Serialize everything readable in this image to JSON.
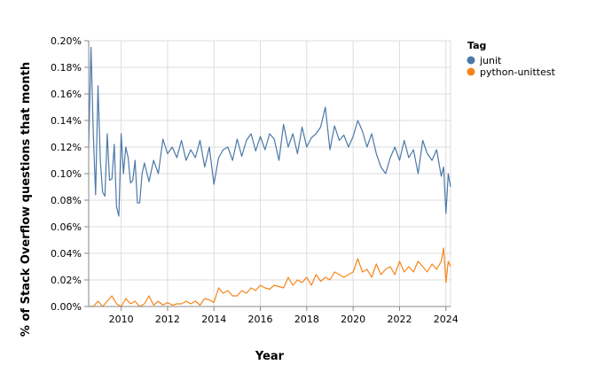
{
  "chart_data": {
    "type": "line",
    "xlabel": "Year",
    "ylabel": "% of Stack Overflow questions that month",
    "xlim": [
      2008.6,
      2024.2
    ],
    "ylim": [
      0,
      0.2
    ],
    "x_ticks": [
      2010,
      2012,
      2014,
      2016,
      2018,
      2020,
      2022,
      2024
    ],
    "x_tick_labels": [
      "2010",
      "2012",
      "2014",
      "2016",
      "2018",
      "2020",
      "2022",
      "2024"
    ],
    "y_ticks": [
      0,
      0.02,
      0.04,
      0.06,
      0.08,
      0.1,
      0.12,
      0.14,
      0.16,
      0.18,
      0.2
    ],
    "y_tick_labels": [
      "0.00%",
      "0.02%",
      "0.04%",
      "0.06%",
      "0.08%",
      "0.10%",
      "0.12%",
      "0.14%",
      "0.16%",
      "0.18%",
      "0.20%"
    ],
    "grid": true,
    "legend": {
      "title": "Tag",
      "placement": "top-right",
      "entries": [
        {
          "label": "junit",
          "color": "#4c78a8"
        },
        {
          "label": "python-unittest",
          "color": "#f58518"
        }
      ]
    },
    "series": [
      {
        "name": "junit",
        "color": "#4c78a8",
        "x": [
          2008.6,
          2008.7,
          2008.8,
          2008.9,
          2009.0,
          2009.1,
          2009.2,
          2009.3,
          2009.4,
          2009.5,
          2009.6,
          2009.7,
          2009.8,
          2009.9,
          2010.0,
          2010.1,
          2010.2,
          2010.3,
          2010.4,
          2010.5,
          2010.6,
          2010.7,
          2010.8,
          2010.9,
          2011.0,
          2011.2,
          2011.4,
          2011.6,
          2011.8,
          2012.0,
          2012.2,
          2012.4,
          2012.6,
          2012.8,
          2013.0,
          2013.2,
          2013.4,
          2013.6,
          2013.8,
          2014.0,
          2014.2,
          2014.4,
          2014.6,
          2014.8,
          2015.0,
          2015.2,
          2015.4,
          2015.6,
          2015.8,
          2016.0,
          2016.2,
          2016.4,
          2016.6,
          2016.8,
          2017.0,
          2017.2,
          2017.4,
          2017.6,
          2017.8,
          2018.0,
          2018.2,
          2018.4,
          2018.6,
          2018.8,
          2019.0,
          2019.2,
          2019.4,
          2019.6,
          2019.8,
          2020.0,
          2020.2,
          2020.4,
          2020.6,
          2020.8,
          2021.0,
          2021.2,
          2021.4,
          2021.6,
          2021.8,
          2022.0,
          2022.2,
          2022.4,
          2022.6,
          2022.8,
          2023.0,
          2023.2,
          2023.4,
          2023.6,
          2023.8,
          2023.9,
          2024.0,
          2024.1,
          2024.2
        ],
        "y": [
          0.12,
          0.195,
          0.13,
          0.084,
          0.166,
          0.11,
          0.086,
          0.083,
          0.13,
          0.095,
          0.096,
          0.122,
          0.075,
          0.068,
          0.13,
          0.1,
          0.12,
          0.112,
          0.093,
          0.095,
          0.11,
          0.078,
          0.078,
          0.1,
          0.108,
          0.094,
          0.11,
          0.1,
          0.126,
          0.115,
          0.12,
          0.112,
          0.125,
          0.11,
          0.118,
          0.112,
          0.125,
          0.105,
          0.12,
          0.092,
          0.112,
          0.118,
          0.12,
          0.11,
          0.126,
          0.113,
          0.125,
          0.13,
          0.117,
          0.128,
          0.118,
          0.13,
          0.126,
          0.11,
          0.137,
          0.12,
          0.13,
          0.115,
          0.135,
          0.12,
          0.127,
          0.13,
          0.135,
          0.15,
          0.118,
          0.136,
          0.125,
          0.129,
          0.12,
          0.128,
          0.14,
          0.132,
          0.12,
          0.13,
          0.115,
          0.105,
          0.1,
          0.112,
          0.12,
          0.11,
          0.125,
          0.112,
          0.118,
          0.1,
          0.125,
          0.115,
          0.11,
          0.118,
          0.098,
          0.105,
          0.07,
          0.1,
          0.09
        ]
      },
      {
        "name": "python-unittest",
        "color": "#f58518",
        "x": [
          2008.6,
          2008.8,
          2009.0,
          2009.2,
          2009.4,
          2009.6,
          2009.8,
          2010.0,
          2010.2,
          2010.4,
          2010.6,
          2010.8,
          2011.0,
          2011.2,
          2011.4,
          2011.6,
          2011.8,
          2012.0,
          2012.2,
          2012.4,
          2012.6,
          2012.8,
          2013.0,
          2013.2,
          2013.4,
          2013.6,
          2013.8,
          2014.0,
          2014.2,
          2014.4,
          2014.6,
          2014.8,
          2015.0,
          2015.2,
          2015.4,
          2015.6,
          2015.8,
          2016.0,
          2016.2,
          2016.4,
          2016.6,
          2016.8,
          2017.0,
          2017.2,
          2017.4,
          2017.6,
          2017.8,
          2018.0,
          2018.2,
          2018.4,
          2018.6,
          2018.8,
          2019.0,
          2019.2,
          2019.4,
          2019.6,
          2019.8,
          2020.0,
          2020.2,
          2020.4,
          2020.6,
          2020.8,
          2021.0,
          2021.2,
          2021.4,
          2021.6,
          2021.8,
          2022.0,
          2022.2,
          2022.4,
          2022.6,
          2022.8,
          2023.0,
          2023.2,
          2023.4,
          2023.6,
          2023.8,
          2023.9,
          2024.0,
          2024.1,
          2024.2
        ],
        "y": [
          0.0,
          0.0,
          0.004,
          0.0,
          0.004,
          0.008,
          0.002,
          0.0,
          0.006,
          0.002,
          0.004,
          0.0,
          0.002,
          0.008,
          0.001,
          0.004,
          0.001,
          0.003,
          0.001,
          0.002,
          0.002,
          0.004,
          0.002,
          0.004,
          0.001,
          0.006,
          0.005,
          0.003,
          0.014,
          0.01,
          0.012,
          0.008,
          0.008,
          0.012,
          0.01,
          0.014,
          0.012,
          0.016,
          0.014,
          0.013,
          0.016,
          0.015,
          0.014,
          0.022,
          0.016,
          0.02,
          0.018,
          0.022,
          0.016,
          0.024,
          0.019,
          0.022,
          0.02,
          0.026,
          0.024,
          0.022,
          0.024,
          0.026,
          0.036,
          0.026,
          0.028,
          0.022,
          0.032,
          0.024,
          0.028,
          0.03,
          0.024,
          0.034,
          0.026,
          0.03,
          0.026,
          0.034,
          0.03,
          0.026,
          0.032,
          0.028,
          0.034,
          0.044,
          0.018,
          0.034,
          0.03
        ]
      }
    ]
  }
}
